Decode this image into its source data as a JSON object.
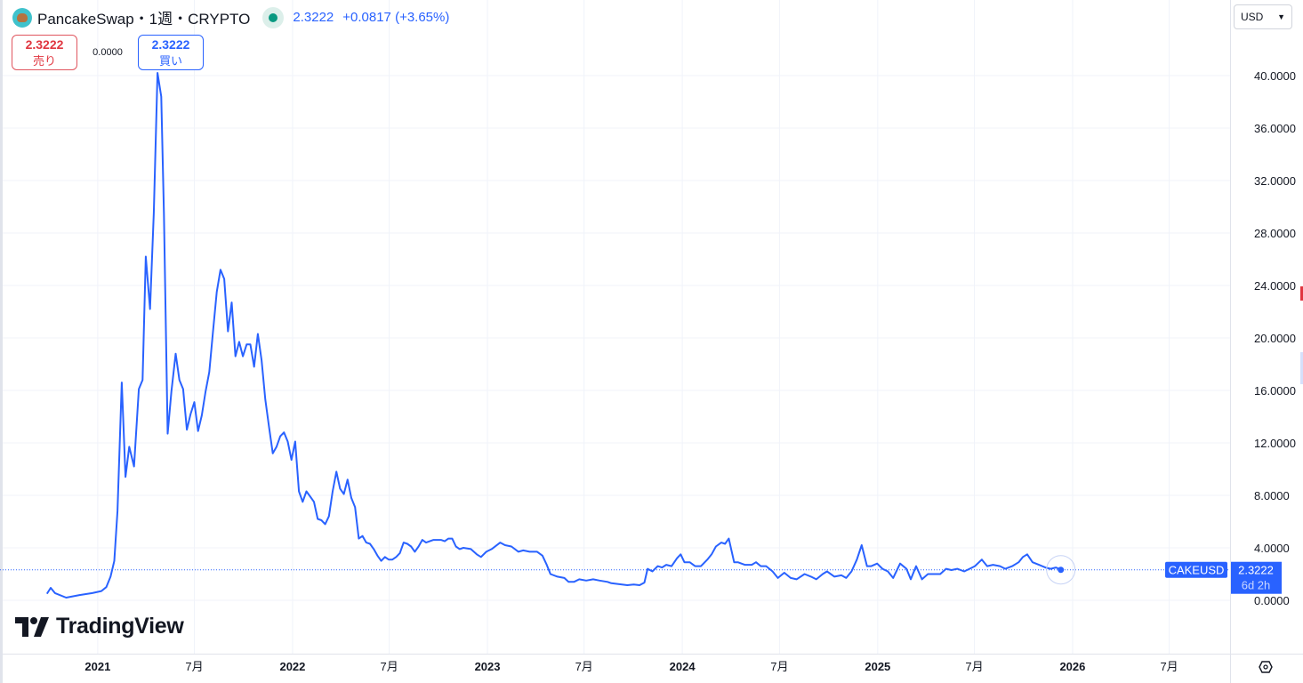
{
  "header": {
    "title": "PancakeSwap・1週・CRYPTO",
    "price": "2.3222",
    "change": "+0.0817 (+3.65%)",
    "status_color": "#089981"
  },
  "trade": {
    "sell_price": "2.3222",
    "sell_label": "売り",
    "spread": "0.0000",
    "buy_price": "2.3222",
    "buy_label": "買い"
  },
  "currency": "USD",
  "logo": "TradingView",
  "chart_data": {
    "type": "line",
    "symbol": "CAKEUSD",
    "last_value_label": "2.3222",
    "countdown": "6d 2h",
    "line_color": "#2962ff",
    "grid": true,
    "xlim": [
      "2020-07-02",
      "2026-10-23"
    ],
    "ylim": [
      -4.07,
      45.76
    ],
    "y_ticks": [
      0,
      4,
      8,
      12,
      16,
      20,
      24,
      28,
      32,
      36,
      40
    ],
    "y_tick_labels": [
      "0.0000",
      "4.0000",
      "8.0000",
      "12.0000",
      "16.0000",
      "20.0000",
      "24.0000",
      "28.0000",
      "32.0000",
      "36.0000",
      "40.0000"
    ],
    "x_ticks": [
      [
        "2021-01-01",
        "2021"
      ],
      [
        "2021-07-01",
        "7月"
      ],
      [
        "2022-01-01",
        "2022"
      ],
      [
        "2022-07-01",
        "7月"
      ],
      [
        "2023-01-01",
        "2023"
      ],
      [
        "2023-07-01",
        "7月"
      ],
      [
        "2024-01-01",
        "2024"
      ],
      [
        "2024-07-01",
        "7月"
      ],
      [
        "2025-01-01",
        "2025"
      ],
      [
        "2025-07-01",
        "7月"
      ],
      [
        "2026-01-01",
        "2026"
      ],
      [
        "2026-07-01",
        "7月"
      ]
    ],
    "points": [
      [
        "2020-09-28",
        0.5
      ],
      [
        "2020-10-05",
        0.95
      ],
      [
        "2020-10-13",
        0.55
      ],
      [
        "2020-11-03",
        0.2
      ],
      [
        "2020-11-28",
        0.4
      ],
      [
        "2020-12-22",
        0.55
      ],
      [
        "2021-01-08",
        0.7
      ],
      [
        "2021-01-17",
        1.0
      ],
      [
        "2021-01-25",
        1.8
      ],
      [
        "2021-02-01",
        3.0
      ],
      [
        "2021-02-07",
        6.8
      ],
      [
        "2021-02-15",
        16.6
      ],
      [
        "2021-02-22",
        9.4
      ],
      [
        "2021-03-01",
        11.7
      ],
      [
        "2021-03-10",
        10.2
      ],
      [
        "2021-03-19",
        16.1
      ],
      [
        "2021-03-26",
        16.8
      ],
      [
        "2021-04-01",
        26.2
      ],
      [
        "2021-04-09",
        22.2
      ],
      [
        "2021-04-16",
        29.5
      ],
      [
        "2021-04-23",
        40.2
      ],
      [
        "2021-04-30",
        38.4
      ],
      [
        "2021-05-05",
        29.5
      ],
      [
        "2021-05-12",
        12.7
      ],
      [
        "2021-05-19",
        15.9
      ],
      [
        "2021-05-27",
        18.8
      ],
      [
        "2021-06-03",
        16.8
      ],
      [
        "2021-06-10",
        16.1
      ],
      [
        "2021-06-17",
        13.0
      ],
      [
        "2021-06-24",
        14.2
      ],
      [
        "2021-07-01",
        15.1
      ],
      [
        "2021-07-08",
        12.9
      ],
      [
        "2021-07-15",
        14.1
      ],
      [
        "2021-07-22",
        15.9
      ],
      [
        "2021-07-29",
        17.4
      ],
      [
        "2021-08-05",
        20.5
      ],
      [
        "2021-08-12",
        23.5
      ],
      [
        "2021-08-19",
        25.2
      ],
      [
        "2021-08-26",
        24.5
      ],
      [
        "2021-09-02",
        20.5
      ],
      [
        "2021-09-09",
        22.7
      ],
      [
        "2021-09-16",
        18.6
      ],
      [
        "2021-09-23",
        19.7
      ],
      [
        "2021-09-30",
        18.6
      ],
      [
        "2021-10-07",
        19.5
      ],
      [
        "2021-10-14",
        19.5
      ],
      [
        "2021-10-21",
        17.8
      ],
      [
        "2021-10-28",
        20.3
      ],
      [
        "2021-11-04",
        18.3
      ],
      [
        "2021-11-11",
        15.3
      ],
      [
        "2021-11-18",
        13.2
      ],
      [
        "2021-11-25",
        11.2
      ],
      [
        "2021-12-02",
        11.7
      ],
      [
        "2021-12-09",
        12.5
      ],
      [
        "2021-12-16",
        12.8
      ],
      [
        "2021-12-23",
        12.1
      ],
      [
        "2021-12-30",
        10.7
      ],
      [
        "2022-01-06",
        12.1
      ],
      [
        "2022-01-13",
        8.3
      ],
      [
        "2022-01-20",
        7.5
      ],
      [
        "2022-01-27",
        8.3
      ],
      [
        "2022-02-03",
        7.9
      ],
      [
        "2022-02-10",
        7.5
      ],
      [
        "2022-02-17",
        6.2
      ],
      [
        "2022-02-24",
        6.1
      ],
      [
        "2022-03-03",
        5.8
      ],
      [
        "2022-03-10",
        6.4
      ],
      [
        "2022-03-17",
        8.3
      ],
      [
        "2022-03-24",
        9.8
      ],
      [
        "2022-03-31",
        8.5
      ],
      [
        "2022-04-07",
        8.1
      ],
      [
        "2022-04-14",
        9.2
      ],
      [
        "2022-04-21",
        7.8
      ],
      [
        "2022-04-28",
        7.1
      ],
      [
        "2022-05-05",
        4.7
      ],
      [
        "2022-05-12",
        4.9
      ],
      [
        "2022-05-19",
        4.4
      ],
      [
        "2022-05-26",
        4.3
      ],
      [
        "2022-06-02",
        3.9
      ],
      [
        "2022-06-09",
        3.4
      ],
      [
        "2022-06-16",
        3.0
      ],
      [
        "2022-06-23",
        3.3
      ],
      [
        "2022-06-30",
        3.1
      ],
      [
        "2022-07-07",
        3.1
      ],
      [
        "2022-07-14",
        3.3
      ],
      [
        "2022-07-21",
        3.6
      ],
      [
        "2022-07-28",
        4.4
      ],
      [
        "2022-08-04",
        4.3
      ],
      [
        "2022-08-11",
        4.1
      ],
      [
        "2022-08-18",
        3.7
      ],
      [
        "2022-08-25",
        4.1
      ],
      [
        "2022-09-01",
        4.6
      ],
      [
        "2022-09-08",
        4.4
      ],
      [
        "2022-09-15",
        4.5
      ],
      [
        "2022-09-22",
        4.6
      ],
      [
        "2022-10-06",
        4.6
      ],
      [
        "2022-10-13",
        4.5
      ],
      [
        "2022-10-20",
        4.7
      ],
      [
        "2022-10-27",
        4.7
      ],
      [
        "2022-11-03",
        4.1
      ],
      [
        "2022-11-10",
        3.9
      ],
      [
        "2022-11-17",
        4.0
      ],
      [
        "2022-12-01",
        3.9
      ],
      [
        "2022-12-12",
        3.5
      ],
      [
        "2022-12-20",
        3.3
      ],
      [
        "2022-12-30",
        3.7
      ],
      [
        "2023-01-09",
        3.9
      ],
      [
        "2023-01-25",
        4.4
      ],
      [
        "2023-02-03",
        4.2
      ],
      [
        "2023-02-15",
        4.1
      ],
      [
        "2023-02-28",
        3.7
      ],
      [
        "2023-03-09",
        3.8
      ],
      [
        "2023-03-21",
        3.7
      ],
      [
        "2023-04-04",
        3.7
      ],
      [
        "2023-04-14",
        3.4
      ],
      [
        "2023-04-22",
        2.7
      ],
      [
        "2023-04-29",
        2.0
      ],
      [
        "2023-05-12",
        1.8
      ],
      [
        "2023-05-25",
        1.7
      ],
      [
        "2023-06-02",
        1.4
      ],
      [
        "2023-06-12",
        1.4
      ],
      [
        "2023-06-22",
        1.6
      ],
      [
        "2023-07-05",
        1.5
      ],
      [
        "2023-07-18",
        1.6
      ],
      [
        "2023-07-30",
        1.5
      ],
      [
        "2023-08-14",
        1.4
      ],
      [
        "2023-08-21",
        1.3
      ],
      [
        "2023-09-10",
        1.2
      ],
      [
        "2023-09-20",
        1.15
      ],
      [
        "2023-10-02",
        1.2
      ],
      [
        "2023-10-13",
        1.15
      ],
      [
        "2023-10-22",
        1.35
      ],
      [
        "2023-10-28",
        2.4
      ],
      [
        "2023-11-06",
        2.2
      ],
      [
        "2023-11-16",
        2.6
      ],
      [
        "2023-11-24",
        2.5
      ],
      [
        "2023-12-02",
        2.7
      ],
      [
        "2023-12-12",
        2.6
      ],
      [
        "2023-12-22",
        3.2
      ],
      [
        "2023-12-29",
        3.5
      ],
      [
        "2024-01-05",
        2.9
      ],
      [
        "2024-01-15",
        2.9
      ],
      [
        "2024-01-25",
        2.6
      ],
      [
        "2024-02-05",
        2.6
      ],
      [
        "2024-02-17",
        3.1
      ],
      [
        "2024-02-25",
        3.5
      ],
      [
        "2024-03-04",
        4.1
      ],
      [
        "2024-03-14",
        4.4
      ],
      [
        "2024-03-21",
        4.3
      ],
      [
        "2024-03-28",
        4.7
      ],
      [
        "2024-04-07",
        2.9
      ],
      [
        "2024-04-14",
        2.9
      ],
      [
        "2024-04-27",
        2.7
      ],
      [
        "2024-05-10",
        2.7
      ],
      [
        "2024-05-18",
        2.9
      ],
      [
        "2024-05-27",
        2.6
      ],
      [
        "2024-06-06",
        2.6
      ],
      [
        "2024-06-18",
        2.2
      ],
      [
        "2024-06-28",
        1.7
      ],
      [
        "2024-07-10",
        2.1
      ],
      [
        "2024-07-22",
        1.7
      ],
      [
        "2024-08-02",
        1.6
      ],
      [
        "2024-08-17",
        2.0
      ],
      [
        "2024-08-29",
        1.8
      ],
      [
        "2024-09-08",
        1.6
      ],
      [
        "2024-09-20",
        2.0
      ],
      [
        "2024-09-28",
        2.2
      ],
      [
        "2024-10-12",
        1.8
      ],
      [
        "2024-10-25",
        1.9
      ],
      [
        "2024-11-03",
        1.7
      ],
      [
        "2024-11-13",
        2.2
      ],
      [
        "2024-11-23",
        3.1
      ],
      [
        "2024-12-02",
        4.2
      ],
      [
        "2024-12-12",
        2.6
      ],
      [
        "2024-12-20",
        2.6
      ],
      [
        "2024-12-31",
        2.8
      ],
      [
        "2025-01-10",
        2.4
      ],
      [
        "2025-01-20",
        2.2
      ],
      [
        "2025-01-30",
        1.7
      ],
      [
        "2025-02-12",
        2.8
      ],
      [
        "2025-02-24",
        2.4
      ],
      [
        "2025-03-04",
        1.6
      ],
      [
        "2025-03-14",
        2.6
      ],
      [
        "2025-03-25",
        1.6
      ],
      [
        "2025-04-05",
        2.0
      ],
      [
        "2025-04-18",
        2.0
      ],
      [
        "2025-04-28",
        2.0
      ],
      [
        "2025-05-09",
        2.4
      ],
      [
        "2025-05-19",
        2.3
      ],
      [
        "2025-05-30",
        2.4
      ],
      [
        "2025-06-12",
        2.2
      ],
      [
        "2025-06-22",
        2.4
      ],
      [
        "2025-07-02",
        2.6
      ],
      [
        "2025-07-15",
        3.1
      ],
      [
        "2025-07-25",
        2.6
      ],
      [
        "2025-08-05",
        2.7
      ],
      [
        "2025-08-18",
        2.6
      ],
      [
        "2025-08-28",
        2.4
      ],
      [
        "2025-09-10",
        2.6
      ],
      [
        "2025-09-22",
        2.9
      ],
      [
        "2025-09-30",
        3.3
      ],
      [
        "2025-10-08",
        3.5
      ],
      [
        "2025-10-18",
        2.9
      ],
      [
        "2025-10-30",
        2.7
      ],
      [
        "2025-11-11",
        2.5
      ],
      [
        "2025-11-21",
        2.4
      ],
      [
        "2025-12-01",
        2.5
      ],
      [
        "2025-12-10",
        2.3222
      ]
    ]
  }
}
